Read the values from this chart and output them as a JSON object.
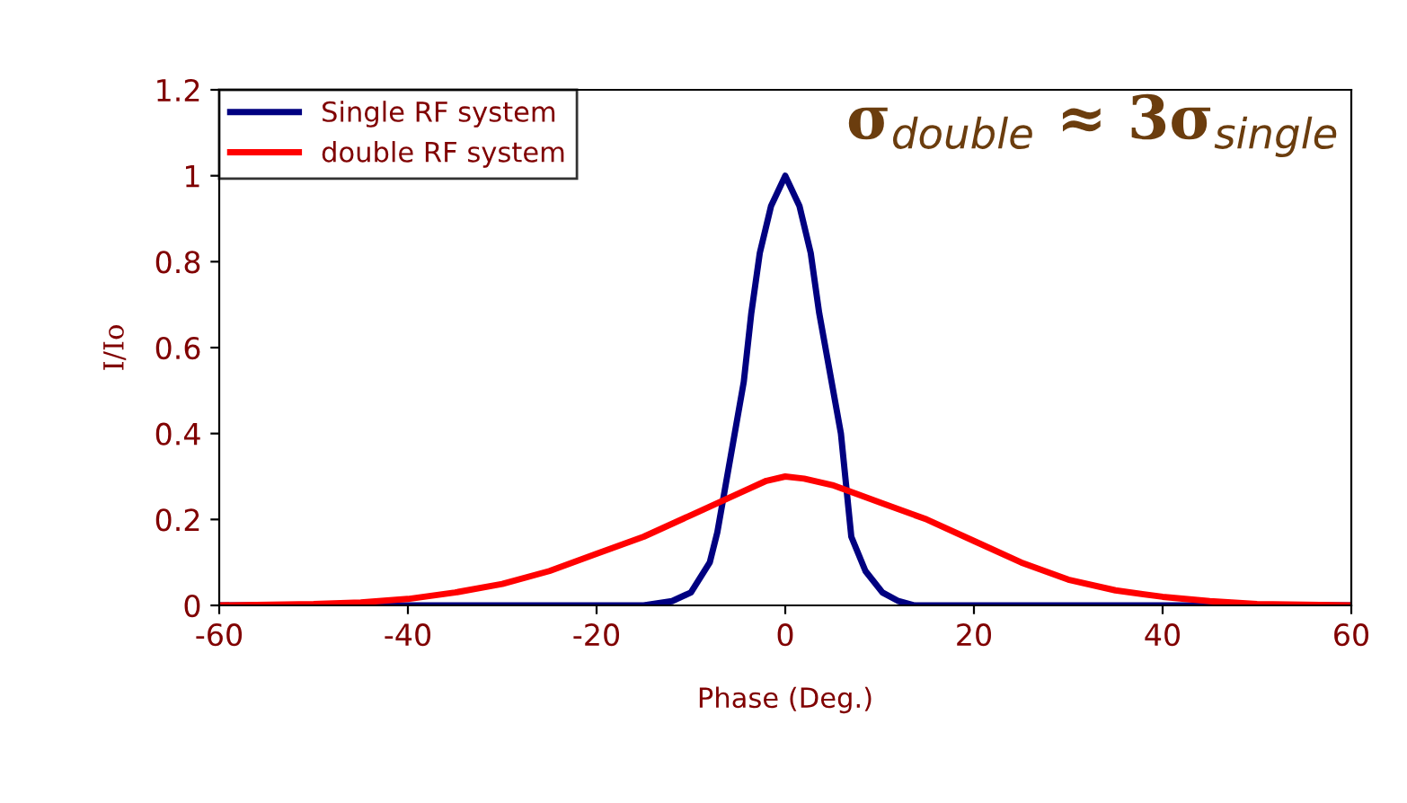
{
  "chart_data": {
    "type": "line",
    "xlabel": "Phase (Deg.)",
    "ylabel": "I/Io",
    "xlim": [
      -60,
      60
    ],
    "ylim": [
      0,
      1.2
    ],
    "xticks": [
      -60,
      -40,
      -20,
      0,
      20,
      40,
      60
    ],
    "yticks": [
      0,
      0.2,
      0.4,
      0.6,
      0.8,
      1,
      1.2
    ],
    "grid": false,
    "legend": "top left",
    "marker": "none",
    "line_style": "solid",
    "annotations": [
      "σ$_{double}$ ≈ 3σ$_{single}$"
    ],
    "series": [
      {
        "name": "Single RF system",
        "color": "#000080",
        "x": [
          -60,
          -20,
          -15,
          -12,
          -10,
          -8,
          -7.2,
          -4.4,
          -3.6,
          -2.7,
          -1.5,
          0,
          1.5,
          2.7,
          3.6,
          5.9,
          7,
          8.5,
          10.3,
          12,
          13.7,
          20,
          60
        ],
        "values": [
          0,
          0,
          0,
          0.01,
          0.03,
          0.1,
          0.17,
          0.52,
          0.68,
          0.82,
          0.93,
          1,
          0.93,
          0.82,
          0.68,
          0.4,
          0.16,
          0.08,
          0.03,
          0.01,
          0,
          0,
          0
        ]
      },
      {
        "name": "double RF system",
        "color": "#ff0000",
        "x": [
          -60,
          -50,
          -45,
          -40,
          -35,
          -30,
          -25,
          -20,
          -15,
          -10,
          -5,
          -2,
          0,
          2,
          5,
          10,
          15,
          20,
          25,
          30,
          35,
          40,
          45,
          50,
          60
        ],
        "values": [
          0,
          0.003,
          0.007,
          0.015,
          0.03,
          0.05,
          0.08,
          0.12,
          0.16,
          0.21,
          0.26,
          0.29,
          0.3,
          0.295,
          0.28,
          0.24,
          0.2,
          0.15,
          0.1,
          0.06,
          0.035,
          0.02,
          0.01,
          0.003,
          0
        ]
      }
    ]
  }
}
